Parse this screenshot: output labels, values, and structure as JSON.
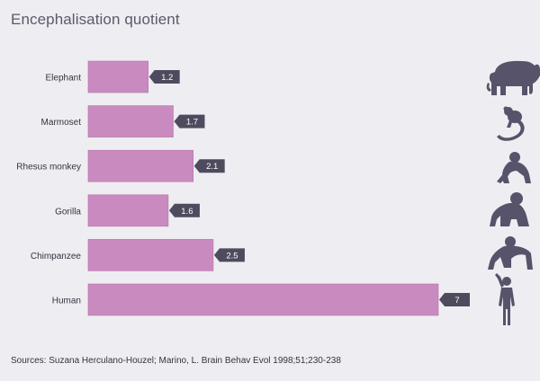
{
  "chart_data": {
    "type": "bar",
    "orientation": "horizontal",
    "title": "Encephalisation quotient",
    "categories": [
      "Elephant",
      "Marmoset",
      "Rhesus monkey",
      "Gorilla",
      "Chimpanzee",
      "Human"
    ],
    "values": [
      1.2,
      1.7,
      2.1,
      1.6,
      2.5,
      7
    ],
    "value_labels": [
      "1.2",
      "1.7",
      "2.1",
      "1.6",
      "2.5",
      "7"
    ],
    "xlim": [
      0,
      7
    ],
    "grid": false,
    "legend": "none",
    "icons": [
      "elephant-icon",
      "marmoset-icon",
      "monkey-icon",
      "gorilla-icon",
      "chimpanzee-icon",
      "human-icon"
    ],
    "colors": {
      "bar": "#c98bbf",
      "bar_edge": "#b574a9",
      "label_box": "#4e4b5f",
      "label_text": "#ffffff",
      "silhouette": "#56536a",
      "background": "#eeedf1"
    }
  },
  "source_text": "Sources: Suzana Herculano-Houzel; Marino, L. Brain Behav Evol 1998;51;230-238"
}
